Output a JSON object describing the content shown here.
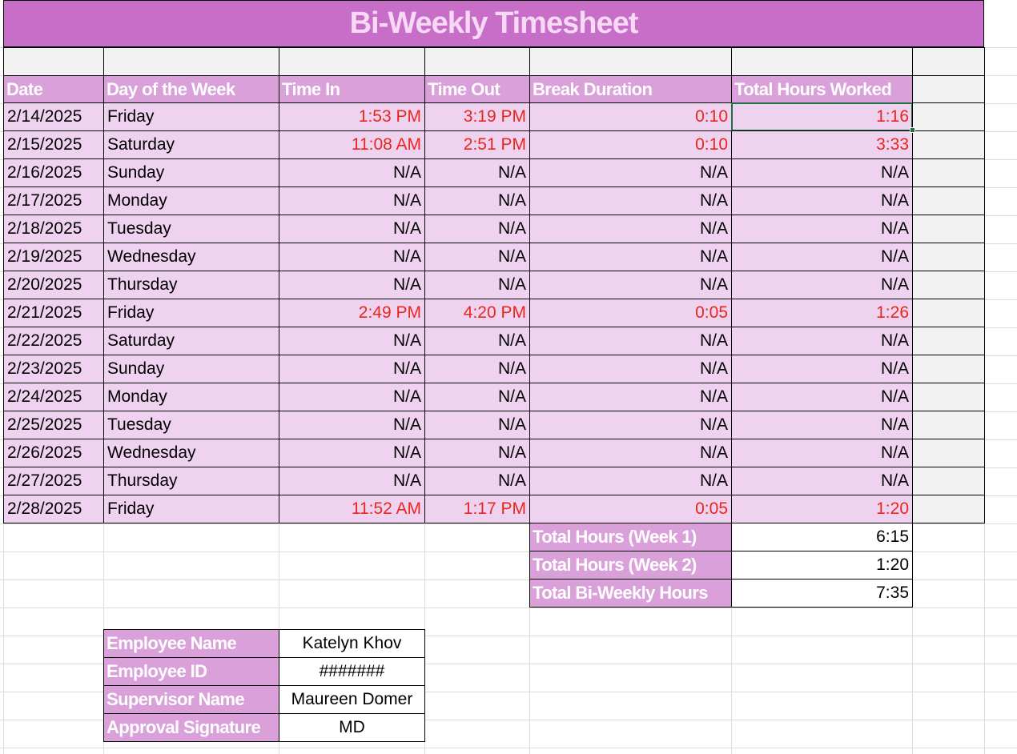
{
  "title": "Bi-Weekly Timesheet",
  "headers": [
    "Date",
    "Day of the Week",
    "Time In",
    "Time Out",
    "Break Duration",
    "Total Hours Worked"
  ],
  "rows": [
    {
      "date": "2/14/2025",
      "day": "Friday",
      "time_in": "1:53 PM",
      "time_out": "3:19 PM",
      "break": "0:10",
      "total": "1:16",
      "worked": true
    },
    {
      "date": "2/15/2025",
      "day": "Saturday",
      "time_in": "11:08 AM",
      "time_out": "2:51 PM",
      "break": "0:10",
      "total": "3:33",
      "worked": true
    },
    {
      "date": "2/16/2025",
      "day": "Sunday",
      "time_in": "N/A",
      "time_out": "N/A",
      "break": "N/A",
      "total": "N/A",
      "worked": false
    },
    {
      "date": "2/17/2025",
      "day": "Monday",
      "time_in": "N/A",
      "time_out": "N/A",
      "break": "N/A",
      "total": "N/A",
      "worked": false
    },
    {
      "date": "2/18/2025",
      "day": "Tuesday",
      "time_in": "N/A",
      "time_out": "N/A",
      "break": "N/A",
      "total": "N/A",
      "worked": false
    },
    {
      "date": "2/19/2025",
      "day": "Wednesday",
      "time_in": "N/A",
      "time_out": "N/A",
      "break": "N/A",
      "total": "N/A",
      "worked": false
    },
    {
      "date": "2/20/2025",
      "day": "Thursday",
      "time_in": "N/A",
      "time_out": "N/A",
      "break": "N/A",
      "total": "N/A",
      "worked": false
    },
    {
      "date": "2/21/2025",
      "day": "Friday",
      "time_in": "2:49 PM",
      "time_out": "4:20 PM",
      "break": "0:05",
      "total": "1:26",
      "worked": true
    },
    {
      "date": "2/22/2025",
      "day": "Saturday",
      "time_in": "N/A",
      "time_out": "N/A",
      "break": "N/A",
      "total": "N/A",
      "worked": false
    },
    {
      "date": "2/23/2025",
      "day": "Sunday",
      "time_in": "N/A",
      "time_out": "N/A",
      "break": "N/A",
      "total": "N/A",
      "worked": false
    },
    {
      "date": "2/24/2025",
      "day": "Monday",
      "time_in": "N/A",
      "time_out": "N/A",
      "break": "N/A",
      "total": "N/A",
      "worked": false
    },
    {
      "date": "2/25/2025",
      "day": "Tuesday",
      "time_in": "N/A",
      "time_out": "N/A",
      "break": "N/A",
      "total": "N/A",
      "worked": false
    },
    {
      "date": "2/26/2025",
      "day": "Wednesday",
      "time_in": "N/A",
      "time_out": "N/A",
      "break": "N/A",
      "total": "N/A",
      "worked": false
    },
    {
      "date": "2/27/2025",
      "day": "Thursday",
      "time_in": "N/A",
      "time_out": "N/A",
      "break": "N/A",
      "total": "N/A",
      "worked": false
    },
    {
      "date": "2/28/2025",
      "day": "Friday",
      "time_in": "11:52 AM",
      "time_out": "1:17 PM",
      "break": "0:05",
      "total": "1:20",
      "worked": true
    }
  ],
  "totals": [
    {
      "label": "Total Hours (Week 1)",
      "value": "6:15"
    },
    {
      "label": "Total Hours (Week 2)",
      "value": "1:20"
    },
    {
      "label": "Total Bi-Weekly Hours",
      "value": "7:35"
    }
  ],
  "info": [
    {
      "label": "Employee Name",
      "value": "Katelyn Khov"
    },
    {
      "label": "Employee ID",
      "value": "#######"
    },
    {
      "label": "Supervisor Name",
      "value": "Maureen Domer"
    },
    {
      "label": "Approval Signature",
      "value": "MD"
    }
  ],
  "colors": {
    "title_bg": "#c76ec8",
    "title_text": "#f7d9f5",
    "header_bg": "#d9a0d9",
    "row_bg": "#efd2ef",
    "highlight_text": "#e8261b",
    "selection": "#1e7145"
  }
}
